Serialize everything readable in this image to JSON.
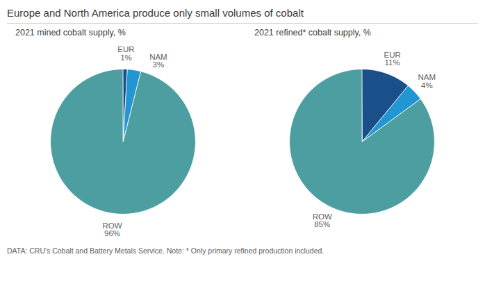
{
  "title": "Europe and North America produce only small volumes of cobalt",
  "footnote": "DATA: CRU's Cobalt and Battery Metals Service. Note: * Only primary refined production included.",
  "chart_data": [
    {
      "type": "pie",
      "title": "2021 mined cobalt supply, %",
      "categories": [
        "EUR",
        "NAM",
        "ROW"
      ],
      "values": [
        1,
        3,
        96
      ],
      "value_labels": [
        "1%",
        "3%",
        "96%"
      ],
      "colors": [
        "#1a4f8a",
        "#2196d3",
        "#4d9ea0"
      ],
      "data_labels": true
    },
    {
      "type": "pie",
      "title": "2021 refined* cobalt supply, %",
      "categories": [
        "EUR",
        "NAM",
        "ROW"
      ],
      "values": [
        11,
        4,
        85
      ],
      "value_labels": [
        "11%",
        "4%",
        "85%"
      ],
      "colors": [
        "#1a4f8a",
        "#2196d3",
        "#4d9ea0"
      ],
      "data_labels": true
    }
  ]
}
